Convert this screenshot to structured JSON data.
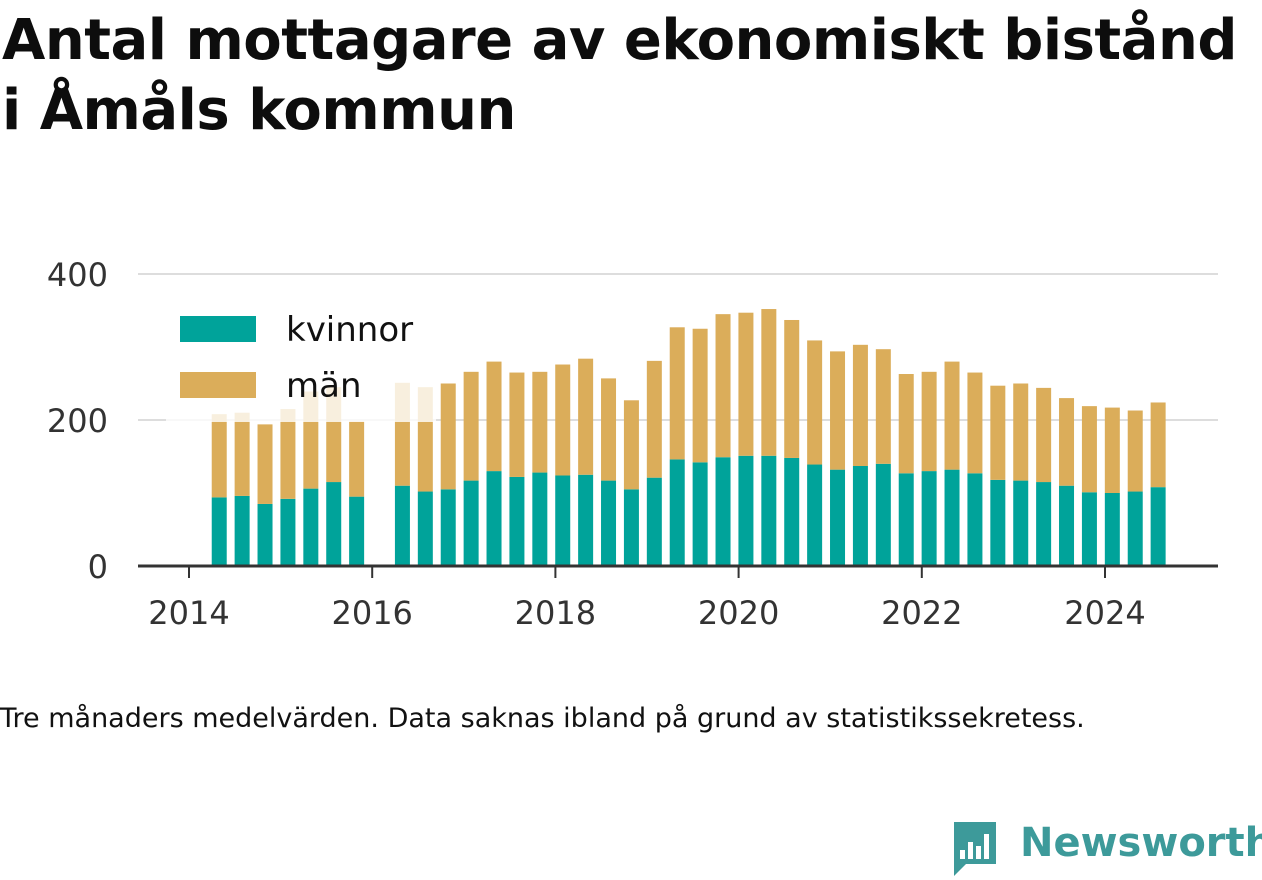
{
  "title": "Antal mottagare av ekonomiskt bistånd i Åmåls kommun",
  "footnote": "Tre månaders medelvärden. Data saknas ibland på grund av statistikssekretess.",
  "brand": {
    "name": "Newsworthy",
    "color": "#3d9a9a"
  },
  "colors": {
    "kvinnor": "#00a39a",
    "man": "#dbad5a",
    "axis": "#333333",
    "grid": "#dddddd",
    "text": "#333333"
  },
  "chart_data": {
    "type": "bar",
    "stacked": true,
    "x_unit": "year",
    "xlim": [
      2014.0,
      2025.0
    ],
    "ylim": [
      0,
      400
    ],
    "y_ticks": [
      0,
      200,
      400
    ],
    "x_ticks": [
      2014,
      2016,
      2018,
      2020,
      2022,
      2024
    ],
    "grid": true,
    "legend_position": "top-left",
    "x": [
      2014.33,
      2014.58,
      2014.83,
      2015.08,
      2015.33,
      2015.58,
      2015.83,
      2016.33,
      2016.58,
      2016.83,
      2017.08,
      2017.33,
      2017.58,
      2017.83,
      2018.08,
      2018.33,
      2018.58,
      2018.83,
      2019.08,
      2019.33,
      2019.58,
      2019.83,
      2020.08,
      2020.33,
      2020.58,
      2020.83,
      2021.08,
      2021.33,
      2021.58,
      2021.83,
      2022.08,
      2022.33,
      2022.58,
      2022.83,
      2023.08,
      2023.33,
      2023.58,
      2023.83,
      2024.08,
      2024.33,
      2024.58
    ],
    "series": [
      {
        "name": "kvinnor",
        "color": "#00a39a",
        "values": [
          94,
          96,
          85,
          92,
          106,
          115,
          95,
          110,
          102,
          105,
          117,
          130,
          122,
          128,
          124,
          125,
          117,
          105,
          121,
          146,
          142,
          149,
          151,
          151,
          148,
          139,
          132,
          137,
          140,
          127,
          130,
          132,
          127,
          118,
          117,
          115,
          110,
          101,
          100,
          102,
          108
        ]
      },
      {
        "name": "män",
        "color": "#dbad5a",
        "values": [
          114,
          114,
          109,
          123,
          133,
          130,
          103,
          141,
          143,
          145,
          149,
          150,
          143,
          138,
          152,
          159,
          140,
          122,
          160,
          181,
          183,
          196,
          196,
          201,
          189,
          170,
          162,
          166,
          157,
          136,
          136,
          148,
          138,
          129,
          133,
          129,
          120,
          118,
          117,
          111,
          116
        ]
      }
    ]
  }
}
